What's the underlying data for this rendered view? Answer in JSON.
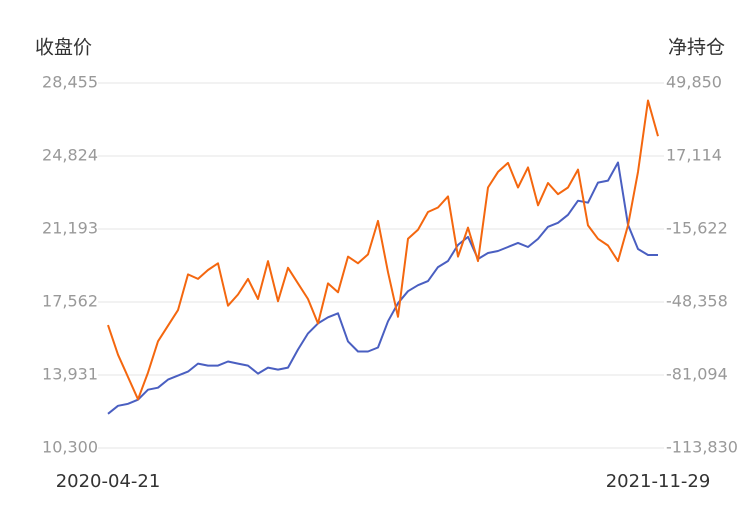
{
  "chart_data": {
    "type": "line",
    "ylabel": "收盘价",
    "y2label": "净持仓",
    "categories": [
      "2020-04-21",
      null,
      null,
      null,
      null,
      null,
      null,
      null,
      null,
      null,
      null,
      null,
      null,
      null,
      null,
      null,
      null,
      null,
      null,
      null,
      null,
      null,
      null,
      null,
      null,
      null,
      null,
      null,
      null,
      null,
      null,
      null,
      null,
      null,
      null,
      null,
      null,
      null,
      null,
      null,
      null,
      null,
      null,
      null,
      null,
      null,
      null,
      null,
      null,
      null,
      null,
      null,
      null,
      null,
      null,
      "2021-11-29"
    ],
    "series": [
      {
        "color": "#4a5fc1",
        "values": [
          12000,
          12400,
          12500,
          12700,
          13200,
          13300,
          13700,
          13900,
          14100,
          14500,
          14400,
          14400,
          14600,
          14500,
          14400,
          14000,
          14300,
          14200,
          14300,
          15200,
          16000,
          16500,
          16800,
          17000,
          15600,
          15100,
          15100,
          15300,
          16600,
          17500,
          18100,
          18400,
          18600,
          19300,
          19600,
          20400,
          20800,
          19700,
          20000,
          20100,
          20300,
          20500,
          20300,
          20700,
          21300,
          21500,
          21900,
          22600,
          22500,
          23500,
          23600,
          24500,
          21400,
          20200,
          19900,
          19900
        ]
      },
      {
        "color": "#f4670f",
        "axis": "y2",
        "values": [
          -58700,
          -72000,
          -82000,
          -92000,
          -80000,
          -66000,
          -59000,
          -52000,
          -36000,
          -38000,
          -34000,
          -31000,
          -50000,
          -45000,
          -38000,
          -47000,
          -30000,
          -48000,
          -33000,
          -40000,
          -47000,
          -58000,
          -40000,
          -44000,
          -28000,
          -31000,
          -27000,
          -12000,
          -35000,
          -55000,
          -20000,
          -16000,
          -8000,
          -6000,
          -1000,
          -28000,
          -15000,
          -30000,
          3000,
          10000,
          14000,
          3000,
          12000,
          -5000,
          5000,
          0,
          3000,
          11000,
          -14000,
          -20000,
          -23000,
          -30000,
          -14000,
          10000,
          42000,
          26000
        ]
      }
    ],
    "ylim": [
      10300,
      28455
    ],
    "yticks": [
      {
        "value": 10300,
        "label": "10,300"
      },
      {
        "value": 13931,
        "label": "13,931"
      },
      {
        "value": 17562,
        "label": "17,562"
      },
      {
        "value": 21193,
        "label": "21,193"
      },
      {
        "value": 24824,
        "label": "24,824"
      },
      {
        "value": 28455,
        "label": "28,455"
      }
    ],
    "y2lim": [
      -113830,
      49850
    ],
    "y2ticks": [
      {
        "value": -113830,
        "label": "-113,830"
      },
      {
        "value": -81094,
        "label": "-81,094"
      },
      {
        "value": -48358,
        "label": "-48,358"
      },
      {
        "value": -15622,
        "label": "-15,622"
      },
      {
        "value": 17114,
        "label": "17,114"
      },
      {
        "value": 49850,
        "label": "49,850"
      }
    ],
    "grid": true
  }
}
